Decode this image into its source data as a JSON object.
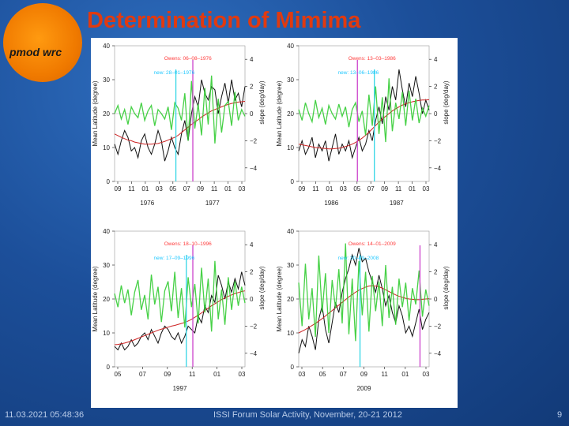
{
  "slide": {
    "title": "Determination of Mimima",
    "logo_text": "pmod wrc",
    "footer_left": "11.03.2021 05:48:36",
    "footer_center": "ISSI Forum Solar Activity, November, 20-21 2012",
    "page_number": "9"
  },
  "colors": {
    "title": "#e03a10",
    "owens": "#ff3c3c",
    "new": "#21c8ff",
    "black": "#111111",
    "green": "#33cc33",
    "red": "#cc2222",
    "magenta": "#cc44cc",
    "cyan": "#33d6e6"
  },
  "chart_data": [
    {
      "type": "line",
      "panel": "top-left",
      "ylabel_left": "Mean Latitude (degree)",
      "ylabel_right": "slope (deg/day)",
      "ylim_left": [
        0,
        40
      ],
      "yticks_left": [
        "0",
        "10",
        "20",
        "30",
        "40"
      ],
      "ylim_right": [
        -5,
        5
      ],
      "yticks_right": [
        "4",
        "2",
        "0",
        "−2",
        "−4"
      ],
      "xticks": [
        "09",
        "11",
        "01",
        "03",
        "05",
        "07",
        "09",
        "11",
        "01",
        "03"
      ],
      "years": [
        "1976",
        "1977"
      ],
      "owens_label": "Owens: 06–08–1976",
      "new_label": "new: 28–01–1976",
      "owens_pos": 0.6,
      "new_pos": 0.47,
      "series": [
        {
          "name": "mean latitude",
          "color": "black",
          "values": [
            11,
            8,
            12,
            15,
            13,
            9,
            10,
            7,
            12,
            14,
            10,
            8,
            11,
            15,
            12,
            6,
            9,
            13,
            10,
            8,
            14,
            18,
            12,
            20,
            25,
            22,
            30,
            26,
            24,
            28,
            27,
            20,
            25,
            29,
            23,
            30,
            24,
            26,
            22,
            28
          ]
        },
        {
          "name": "smoothed",
          "color": "red",
          "values": [
            14,
            13.5,
            13,
            12.6,
            12.2,
            12,
            11.6,
            11.4,
            11.2,
            11,
            11,
            11,
            11.1,
            11.2,
            11.5,
            11.8,
            12.2,
            12.6,
            13,
            13.6,
            14.4,
            15.2,
            16,
            16.8,
            17.5,
            18.2,
            19,
            19.6,
            20.2,
            20.8,
            21.2,
            21.6,
            22,
            22.4,
            22.7,
            23,
            23.2,
            23.4,
            23.5,
            23.6
          ]
        },
        {
          "name": "slope",
          "color": "green",
          "values": [
            0,
            0.6,
            -0.4,
            0.3,
            -0.8,
            0.5,
            0,
            -0.3,
            0.8,
            -0.5,
            0.2,
            0.6,
            -0.9,
            0.3,
            0,
            -0.4,
            0.5,
            -1.2,
            0.8,
            0.4,
            -0.5,
            1.5,
            -2,
            2.4,
            -1.1,
            0.7,
            -1.6,
            1.9,
            -0.8,
            2.8,
            -2.2,
            1.1,
            -1.4,
            0.6,
            0.9,
            -0.9,
            1.6,
            -0.5,
            0.3,
            -0.2
          ]
        }
      ]
    },
    {
      "type": "line",
      "panel": "top-right",
      "ylabel_left": "Mean Latitude (degree)",
      "ylabel_right": "slope (deg/day)",
      "ylim_left": [
        0,
        40
      ],
      "yticks_left": [
        "0",
        "10",
        "20",
        "30",
        "40"
      ],
      "ylim_right": [
        -5,
        5
      ],
      "yticks_right": [
        "4",
        "2",
        "0",
        "−2",
        "−4"
      ],
      "xticks": [
        "09",
        "11",
        "01",
        "03",
        "05",
        "07",
        "09",
        "11",
        "01",
        "03"
      ],
      "years": [
        "1986",
        "1987"
      ],
      "owens_label": "Owens: 13–03–1986",
      "new_label": "new: 13–06–1986",
      "owens_pos": 0.45,
      "new_pos": 0.58,
      "series": [
        {
          "name": "mean latitude",
          "color": "black",
          "values": [
            9,
            12,
            8,
            10,
            13,
            7,
            11,
            9,
            12,
            6,
            10,
            14,
            8,
            11,
            9,
            12,
            7,
            10,
            13,
            9,
            11,
            15,
            12,
            18,
            22,
            17,
            25,
            21,
            28,
            24,
            33,
            27,
            22,
            29,
            25,
            31,
            26,
            20,
            24,
            21
          ]
        },
        {
          "name": "smoothed",
          "color": "red",
          "values": [
            11,
            10.8,
            10.6,
            10.4,
            10.2,
            10,
            9.9,
            9.8,
            9.7,
            9.6,
            9.6,
            9.7,
            9.8,
            10,
            10.3,
            10.6,
            11,
            11.5,
            12.1,
            12.8,
            13.6,
            14.5,
            15.5,
            16.5,
            17.5,
            18.4,
            19.2,
            20,
            20.8,
            21.4,
            22,
            22.5,
            22.9,
            23.2,
            23.5,
            23.7,
            23.9,
            24,
            24,
            24.1
          ]
        },
        {
          "name": "slope",
          "color": "green",
          "values": [
            0.3,
            -0.5,
            0.8,
            0,
            -0.6,
            1,
            -0.3,
            0.4,
            -0.8,
            0.6,
            0,
            -0.4,
            0.7,
            -0.2,
            0.5,
            -1,
            0.3,
            0.8,
            -0.6,
            0.2,
            -1.6,
            1.4,
            -0.9,
            2,
            -1.5,
            1.2,
            -2.1,
            2.6,
            -1.3,
            0.8,
            -0.4,
            1.6,
            -0.9,
            1.7,
            -0.5,
            1.1,
            -0.7,
            0.4,
            -0.2,
            0.6
          ]
        }
      ]
    },
    {
      "type": "line",
      "panel": "bottom-left",
      "ylabel_left": "Mean Latitude (degree)",
      "ylabel_right": "slope (deg/day)",
      "ylim_left": [
        0,
        40
      ],
      "yticks_left": [
        "0",
        "10",
        "20",
        "30",
        "40"
      ],
      "ylim_right": [
        -5,
        5
      ],
      "yticks_right": [
        "4",
        "2",
        "0",
        "−2",
        "−4"
      ],
      "xticks": [
        "05",
        "07",
        "09",
        "11",
        "01",
        "03"
      ],
      "years": [
        "1997"
      ],
      "owens_label": "Owens: 18–10–1996",
      "new_label": "new: 17–09–1996",
      "owens_pos": 0.6,
      "new_pos": 0.55,
      "series": [
        {
          "name": "mean latitude",
          "color": "black",
          "values": [
            6,
            5,
            7,
            5,
            6,
            8,
            6,
            7,
            9,
            10,
            8,
            11,
            9,
            7,
            10,
            12,
            11,
            9,
            8,
            10,
            7,
            9,
            12,
            11,
            10,
            15,
            13,
            18,
            16,
            21,
            19,
            27,
            24,
            20,
            25,
            22,
            26,
            23,
            28,
            24
          ]
        },
        {
          "name": "smoothed",
          "color": "red",
          "values": [
            6.5,
            6.6,
            6.8,
            7,
            7.3,
            7.6,
            8,
            8.4,
            8.8,
            9.2,
            9.6,
            10,
            10.4,
            10.8,
            11.1,
            11.4,
            11.7,
            12,
            12.2,
            12.5,
            12.8,
            13.1,
            13.5,
            14,
            14.6,
            15.2,
            15.9,
            16.6,
            17.3,
            18,
            18.6,
            19.2,
            19.8,
            20.3,
            20.8,
            21.2,
            21.6,
            21.9,
            22.2,
            22.4
          ]
        },
        {
          "name": "slope",
          "color": "green",
          "values": [
            0.4,
            -0.6,
            1,
            -0.3,
            0.7,
            -1.2,
            0.5,
            1.4,
            -0.8,
            0.3,
            -1.5,
            1.8,
            -0.4,
            0.9,
            -1.7,
            0.6,
            1.3,
            -0.9,
            2,
            -1.4,
            0.8,
            -2.1,
            1.6,
            -0.6,
            1.1,
            -1.8,
            2.3,
            -1,
            1.5,
            -2.4,
            2.8,
            -1.5,
            0.7,
            -1.9,
            1.6,
            -0.8,
            1.3,
            -0.5,
            0.9,
            -0.3
          ]
        }
      ]
    },
    {
      "type": "line",
      "panel": "bottom-right",
      "ylabel_left": "Mean Latitude (degree)",
      "ylabel_right": "slope (deg/day)",
      "ylim_left": [
        0,
        40
      ],
      "yticks_left": [
        "0",
        "10",
        "20",
        "30",
        "40"
      ],
      "ylim_right": [
        -5,
        5
      ],
      "yticks_right": [
        "4",
        "2",
        "0",
        "−2",
        "−4"
      ],
      "xticks": [
        "03",
        "05",
        "07",
        "09",
        "11",
        "01",
        "03"
      ],
      "years": [
        "2009"
      ],
      "owens_label": "Owens: 14–01–2009",
      "new_label": "new: 30–09–2008",
      "owens_pos": 0.93,
      "new_pos": 0.47,
      "series": [
        {
          "name": "mean latitude",
          "color": "black",
          "values": [
            4,
            8,
            6,
            12,
            9,
            5,
            14,
            18,
            11,
            7,
            13,
            19,
            16,
            22,
            26,
            29,
            33,
            30,
            35,
            31,
            32,
            28,
            25,
            22,
            27,
            23,
            18,
            21,
            16,
            13,
            18,
            15,
            10,
            12,
            9,
            13,
            17,
            11,
            14,
            16
          ]
        },
        {
          "name": "smoothed",
          "color": "red",
          "values": [
            10,
            10.5,
            11,
            11.6,
            12.2,
            12.8,
            13.5,
            14.2,
            15,
            15.8,
            16.6,
            17.4,
            18.2,
            19,
            19.8,
            20.6,
            21.3,
            22,
            22.6,
            23.1,
            23.5,
            23.8,
            23.9,
            23.8,
            23.6,
            23.2,
            22.7,
            22.2,
            21.7,
            21.2,
            20.8,
            20.5,
            20.2,
            20,
            19.9,
            19.8,
            19.8,
            19.9,
            20,
            20.1
          ]
        },
        {
          "name": "slope",
          "color": "green",
          "values": [
            1.2,
            -2,
            2.6,
            -1.5,
            0.8,
            -2.8,
            3.2,
            -1,
            1.9,
            -2.5,
            1.4,
            -0.7,
            2.2,
            -1.8,
            4.1,
            -2.6,
            1.5,
            -3.1,
            2.8,
            -1.2,
            2,
            -2.4,
            1.7,
            -0.9,
            1.3,
            -2,
            2.5,
            -1.4,
            0.9,
            -1.9,
            1.5,
            -0.6,
            1.2,
            -1.6,
            0.8,
            -0.4,
            2.1,
            -1.3,
            0.7,
            -0.5
          ]
        }
      ]
    }
  ]
}
